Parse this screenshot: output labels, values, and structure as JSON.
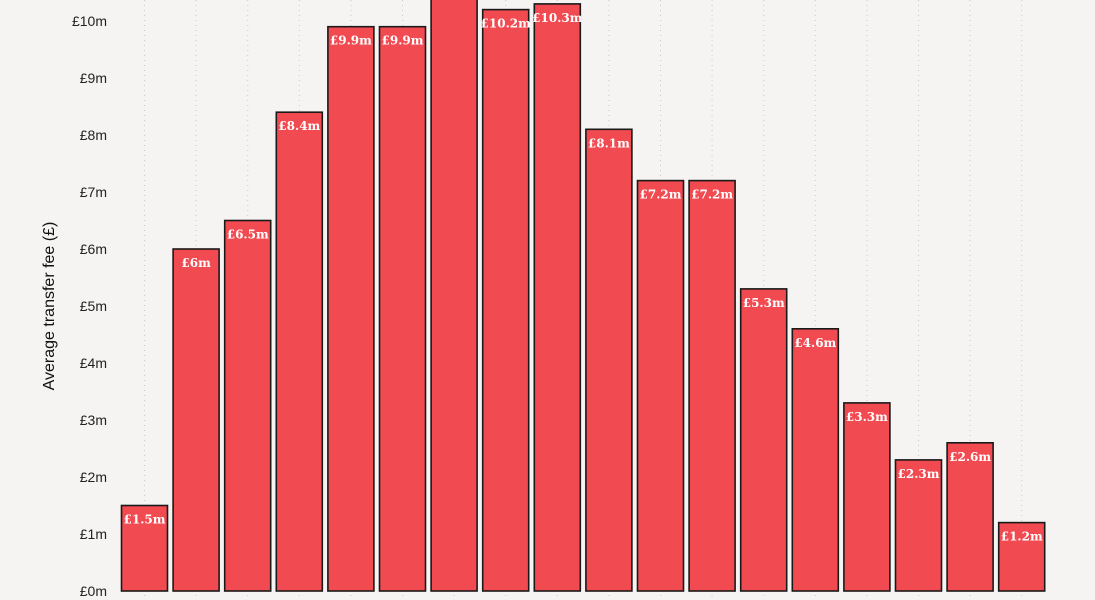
{
  "chart_data": {
    "type": "bar",
    "title": "",
    "xlabel": "",
    "ylabel": "Average transfer fee (£)",
    "y_ticks": [
      "£0m",
      "£1m",
      "£2m",
      "£3m",
      "£4m",
      "£5m",
      "£6m",
      "£7m",
      "£8m",
      "£9m",
      "£10m"
    ],
    "ylim": [
      0,
      10.5
    ],
    "grid": true,
    "bar_color": "#f24a51",
    "bar_outline_color": "#1a1a1a",
    "values": [
      1.5,
      6.0,
      6.5,
      8.4,
      9.9,
      9.9,
      10.6,
      10.2,
      10.3,
      8.1,
      7.2,
      7.2,
      5.3,
      4.6,
      3.3,
      2.3,
      2.6,
      1.2
    ],
    "labels": [
      "£1.5m",
      "£6m",
      "£6.5m",
      "£8.4m",
      "£9.9m",
      "£9.9m",
      "",
      "£10.2m",
      "£10.3m",
      "£8.1m",
      "£7.2m",
      "£7.2m",
      "£5.3m",
      "£4.6m",
      "£3.3m",
      "£2.3m",
      "£2.6m",
      "£1.2m"
    ]
  }
}
